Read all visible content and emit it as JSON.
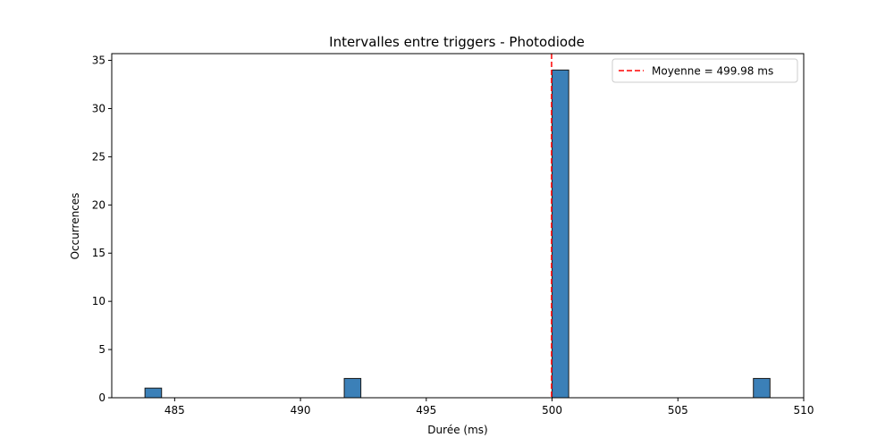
{
  "chart_data": {
    "type": "bar",
    "title": "Intervalles entre triggers - Photodiode",
    "xlabel": "Durée (ms)",
    "ylabel": "Occurrences",
    "xlim": [
      482.5,
      510
    ],
    "ylim": [
      0,
      35.7
    ],
    "xticks": [
      485,
      490,
      495,
      500,
      505,
      510
    ],
    "yticks": [
      0,
      5,
      10,
      15,
      20,
      25,
      30,
      35
    ],
    "bin_width": 0.66,
    "bins": [
      {
        "start": 483.82,
        "value": 1
      },
      {
        "start": 491.74,
        "value": 2
      },
      {
        "start": 500.0,
        "value": 34
      },
      {
        "start": 508.0,
        "value": 2
      }
    ],
    "bar_color": "#3b80b8",
    "mean_line": {
      "value": 499.98,
      "color": "#ff0000"
    },
    "legend": {
      "label": "Moyenne = 499.98 ms",
      "position": "top-right"
    },
    "grid": false
  }
}
